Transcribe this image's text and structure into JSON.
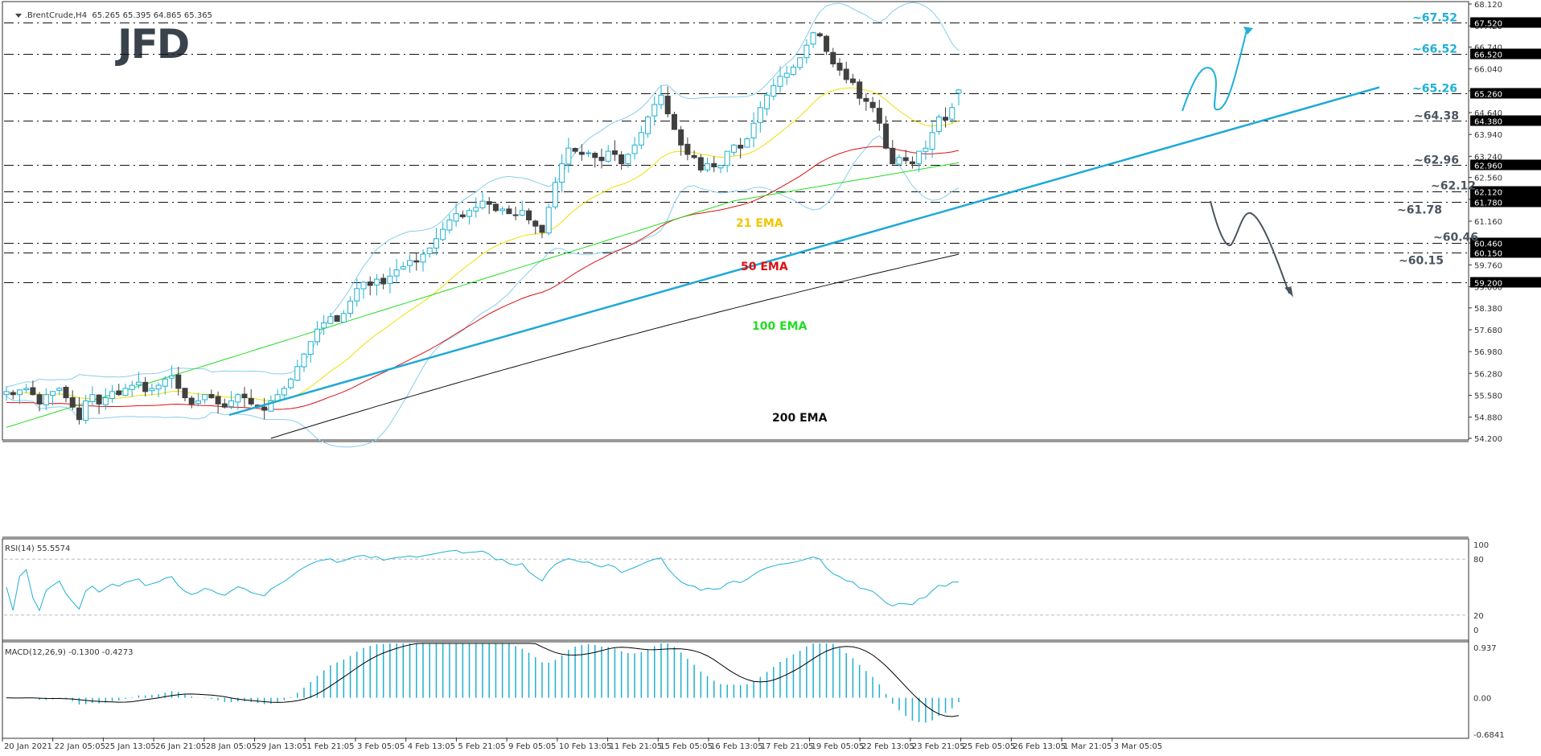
{
  "header": {
    "symbol": ".BrentCrude,H4",
    "ohlc": "65.265 65.395 64.865 65.365"
  },
  "logo": {
    "text": "JFD"
  },
  "colors": {
    "bull": "#1fb0d0",
    "bear": "#404040",
    "bollinger": "#87ceeb",
    "ema21": "#f0e000",
    "ema50": "#dd1111",
    "ema100": "#22dd22",
    "ema200": "#111111",
    "trendline": "#1fa8d8",
    "label_blue": "#1fb0d8",
    "label_gray": "#4a5560",
    "rsi": "#1fb0d0",
    "macd_hist": "#1fb0d0",
    "macd_signal": "#000000"
  },
  "annotations": {
    "ema21": "21 EMA",
    "ema50": "50 EMA",
    "ema100": "100 EMA",
    "ema200": "200 EMA"
  },
  "indicators": {
    "rsi_label": "RSI(14) 55.5574",
    "macd_label": "MACD(12,26,9) -0.1300 -0.4273"
  },
  "chart_data": [
    {
      "type": "candlestick",
      "title": ".BrentCrude,H4",
      "xlabel": "",
      "ylabel": "Price",
      "ylim": [
        54.2,
        68.12
      ],
      "y_ticks": [
        "68.120",
        "67.420",
        "66.740",
        "66.040",
        "65.340",
        "64.640",
        "63.940",
        "63.240",
        "62.560",
        "61.860",
        "61.160",
        "60.460",
        "59.760",
        "59.060",
        "58.380",
        "57.680",
        "56.980",
        "56.280",
        "55.580",
        "54.880",
        "54.200"
      ],
      "x_ticks": [
        "20 Jan 2021",
        "22 Jan 05:05",
        "25 Jan 13:05",
        "26 Jan 21:05",
        "28 Jan 05:05",
        "29 Jan 13:05",
        "1 Feb 21:05",
        "3 Feb 05:05",
        "4 Feb 13:05",
        "5 Feb 21:05",
        "9 Feb 05:05",
        "10 Feb 13:05",
        "11 Feb 21:05",
        "15 Feb 05:05",
        "16 Feb 13:05",
        "17 Feb 21:05",
        "19 Feb 05:05",
        "22 Feb 13:05",
        "23 Feb 21:05",
        "25 Feb 05:05",
        "26 Feb 13:05",
        "1 Mar 21:05",
        "3 Mar 05:05"
      ],
      "last_ohlc": {
        "open": 65.265,
        "high": 65.395,
        "low": 64.865,
        "close": 65.365
      },
      "horizontal_levels": [
        {
          "value": 67.52,
          "label": "~67.52",
          "axis_label": "67.520",
          "color": "blue"
        },
        {
          "value": 66.52,
          "label": "~66.52",
          "axis_label": "66.520",
          "color": "blue"
        },
        {
          "value": 65.26,
          "label": "~65.26",
          "axis_label": "65.260",
          "color": "blue"
        },
        {
          "value": 64.38,
          "label": "~64.38",
          "axis_label": "64.380",
          "color": "gray"
        },
        {
          "value": 62.96,
          "label": "~62.96",
          "axis_label": "62.960",
          "color": "gray"
        },
        {
          "value": 62.12,
          "label": "~62.12",
          "axis_label": "62.120",
          "color": "gray"
        },
        {
          "value": 61.78,
          "label": "~61.78",
          "axis_label": "61.780",
          "color": "gray"
        },
        {
          "value": 60.46,
          "label": "~60.46",
          "axis_label": "60.460",
          "color": "gray"
        },
        {
          "value": 60.15,
          "label": "~60.15",
          "axis_label": "60.150",
          "color": "gray"
        },
        {
          "value": 59.2,
          "label": "",
          "axis_label": "59.200",
          "color": "gray"
        }
      ],
      "close_series": [
        55.7,
        55.6,
        55.75,
        55.8,
        55.6,
        55.3,
        55.6,
        55.7,
        55.8,
        55.5,
        55.2,
        54.8,
        55.4,
        55.6,
        55.3,
        55.5,
        55.7,
        55.6,
        55.8,
        55.9,
        56.0,
        55.7,
        55.8,
        55.9,
        56.1,
        56.2,
        55.8,
        55.5,
        55.3,
        55.4,
        55.6,
        55.5,
        55.3,
        55.2,
        55.4,
        55.6,
        55.5,
        55.3,
        55.2,
        55.1,
        55.4,
        55.6,
        55.8,
        56.1,
        56.5,
        56.9,
        57.3,
        57.7,
        57.9,
        58.1,
        57.95,
        58.2,
        58.6,
        59.0,
        59.2,
        59.1,
        59.3,
        59.15,
        59.4,
        59.6,
        59.7,
        59.9,
        59.85,
        60.1,
        60.3,
        60.6,
        60.9,
        61.2,
        61.4,
        61.3,
        61.5,
        61.6,
        61.8,
        61.7,
        61.5,
        61.55,
        61.4,
        61.35,
        61.5,
        61.2,
        61.0,
        60.8,
        61.6,
        62.4,
        63.0,
        63.5,
        63.4,
        63.3,
        63.35,
        63.2,
        63.1,
        63.4,
        63.3,
        63.0,
        63.3,
        63.6,
        64.0,
        64.5,
        64.9,
        65.2,
        64.6,
        64.1,
        63.6,
        63.3,
        63.2,
        62.8,
        63.0,
        62.9,
        62.95,
        63.4,
        63.6,
        63.5,
        63.8,
        64.3,
        64.8,
        65.2,
        65.5,
        65.8,
        65.9,
        66.1,
        66.4,
        66.8,
        67.2,
        67.1,
        66.6,
        66.2,
        66.0,
        65.7,
        65.6,
        65.1,
        65.0,
        64.8,
        64.3,
        63.5,
        63.0,
        63.2,
        63.1,
        63.0,
        63.4,
        63.5,
        64.0,
        64.5,
        64.4,
        64.8,
        65.365
      ],
      "rsi": {
        "ylim": [
          0,
          100
        ],
        "levels": [
          20,
          80
        ],
        "last": 55.5574
      },
      "macd": {
        "ylim": [
          -0.6841,
          0.937
        ],
        "zero": 0.0,
        "main": -0.13,
        "signal": -0.4273
      }
    }
  ],
  "price_axis": {
    "ticks": [
      "68.120",
      "67.420",
      "66.740",
      "66.040",
      "65.340",
      "64.640",
      "63.940",
      "63.240",
      "62.560",
      "61.860",
      "61.160",
      "60.460",
      "59.760",
      "59.060",
      "58.380",
      "57.680",
      "56.980",
      "56.280",
      "55.580",
      "54.880",
      "54.200"
    ]
  },
  "rsi_axis": {
    "ticks": [
      "100",
      "80",
      "20",
      "0"
    ]
  },
  "macd_axis": {
    "ticks": [
      "0.937",
      "0.00",
      "-0.6841"
    ]
  },
  "time_axis": {
    "ticks": [
      "20 Jan 2021",
      "22 Jan 05:05",
      "25 Jan 13:05",
      "26 Jan 21:05",
      "28 Jan 05:05",
      "29 Jan 13:05",
      "1 Feb 21:05",
      "3 Feb 05:05",
      "4 Feb 13:05",
      "5 Feb 21:05",
      "9 Feb 05:05",
      "10 Feb 13:05",
      "11 Feb 21:05",
      "15 Feb 05:05",
      "16 Feb 13:05",
      "17 Feb 21:05",
      "19 Feb 05:05",
      "22 Feb 13:05",
      "23 Feb 21:05",
      "25 Feb 05:05",
      "26 Feb 13:05",
      "1 Mar 21:05",
      "3 Mar 05:05"
    ]
  }
}
